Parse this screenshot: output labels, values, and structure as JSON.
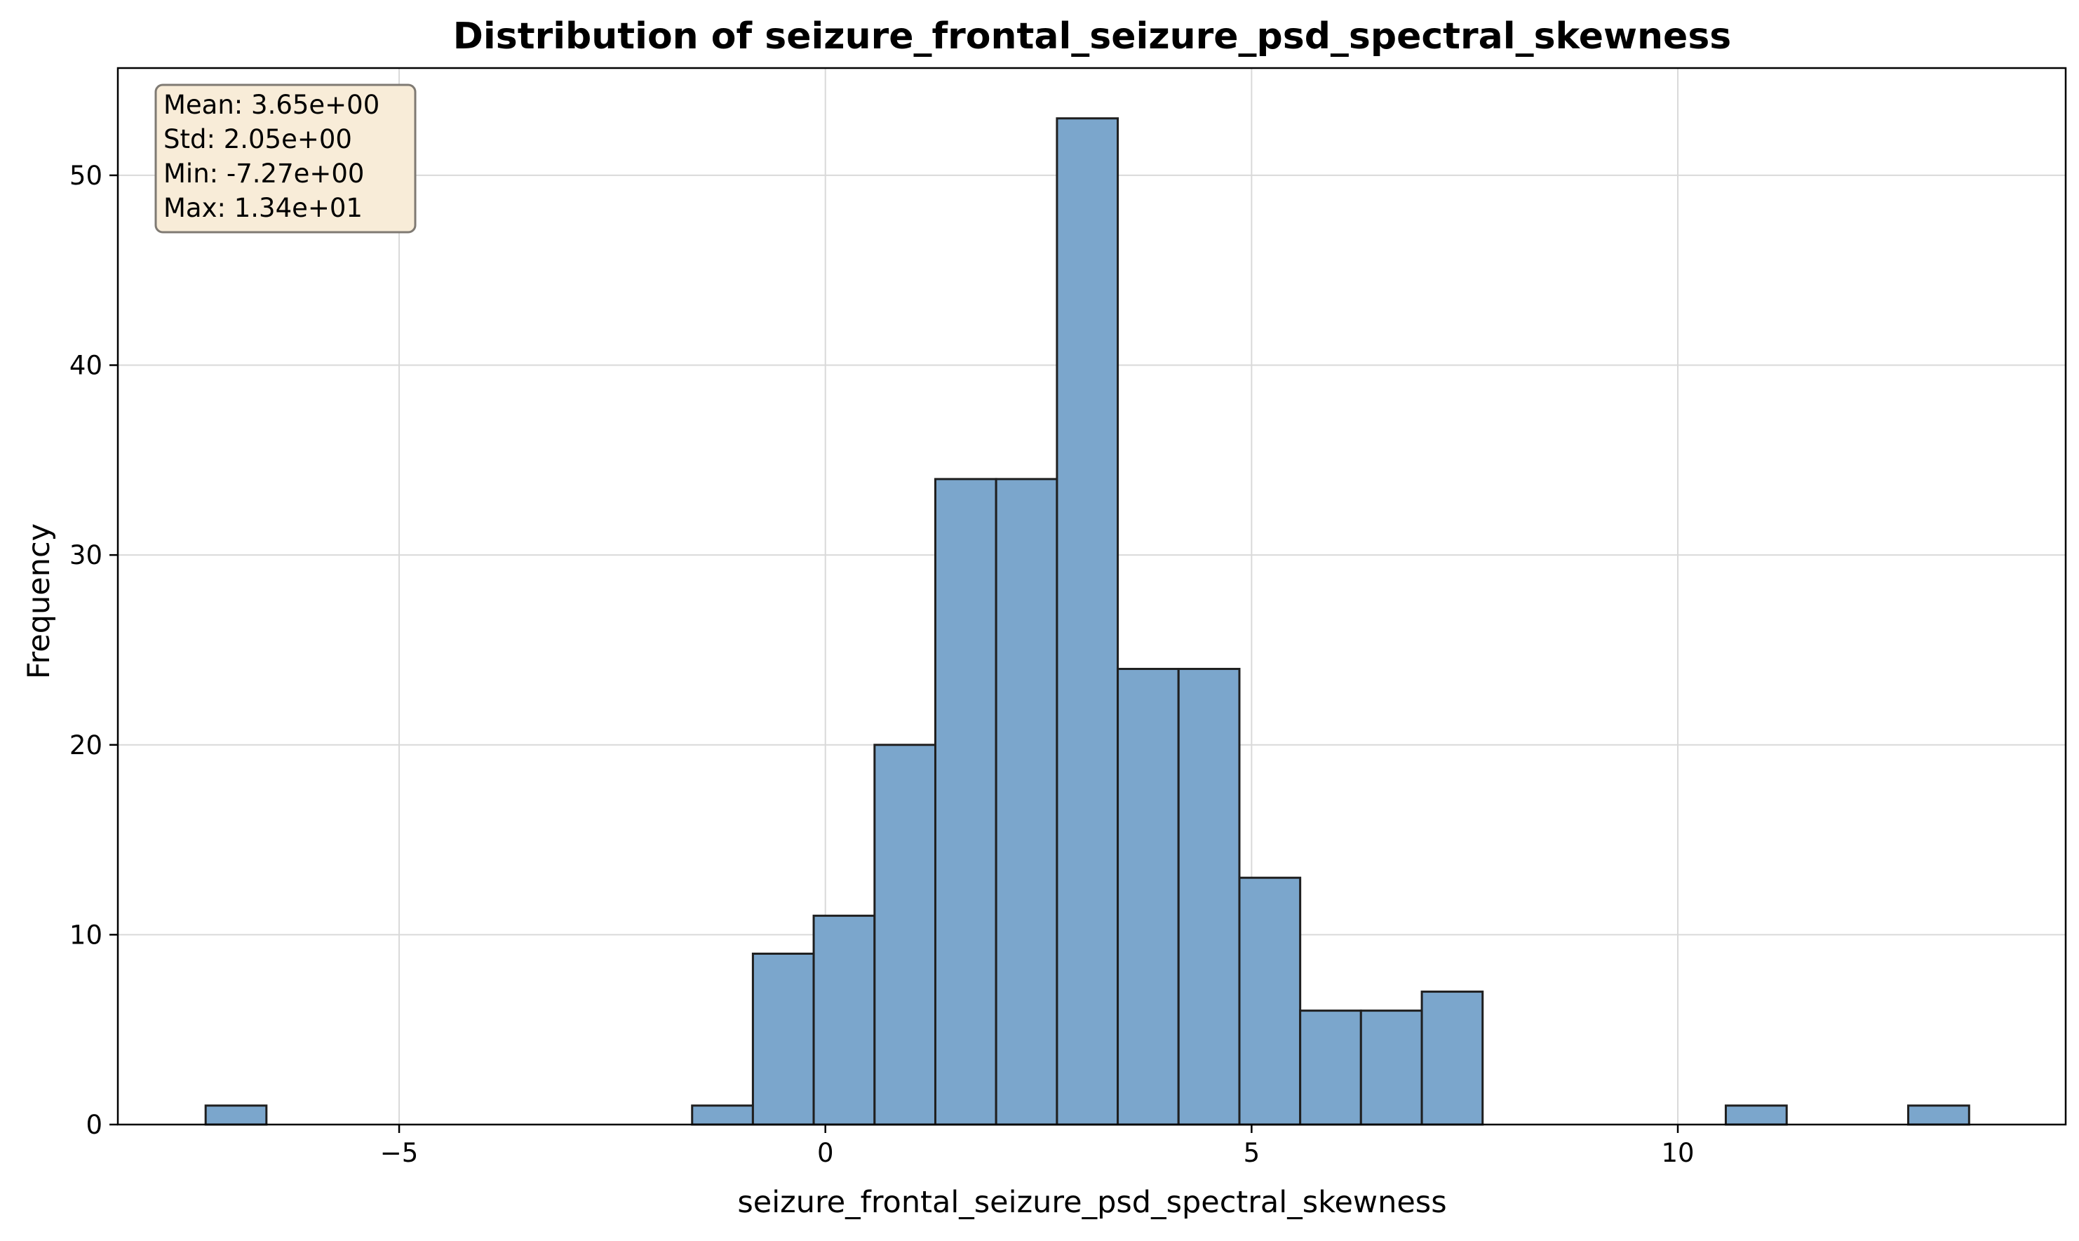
{
  "chart_data": {
    "type": "bar",
    "subtype": "histogram",
    "title": "Distribution of seizure_frontal_seizure_psd_spectral_skewness",
    "xlabel": "seizure_frontal_seizure_psd_spectral_skewness",
    "ylabel": "Frequency",
    "xlim": [
      -8.3,
      14.55
    ],
    "ylim": [
      0,
      55.65
    ],
    "xticks": [
      -5,
      0,
      5,
      10
    ],
    "xtick_labels": [
      "−5",
      "0",
      "5",
      "10"
    ],
    "yticks": [
      0,
      10,
      20,
      30,
      40,
      50
    ],
    "ytick_labels": [
      "0",
      "10",
      "20",
      "30",
      "40",
      "50"
    ],
    "grid": true,
    "bin_edges": [
      -7.27,
      -6.557,
      -5.843,
      -5.13,
      -4.417,
      -3.703,
      -2.99,
      -2.277,
      -1.563,
      -0.85,
      -0.137,
      0.577,
      1.29,
      2.003,
      2.717,
      3.43,
      4.143,
      4.857,
      5.57,
      6.283,
      6.997,
      7.71,
      8.423,
      9.137,
      9.85,
      10.563,
      11.277,
      11.99,
      12.703,
      13.417
    ],
    "counts": [
      1,
      0,
      0,
      0,
      0,
      0,
      0,
      0,
      1,
      9,
      11,
      20,
      34,
      34,
      53,
      24,
      24,
      13,
      6,
      6,
      7,
      0,
      0,
      0,
      0,
      1,
      0,
      0,
      1
    ],
    "bar_color": "#7ba6cc",
    "edge_color": "#1f1f1f",
    "stats_box": {
      "lines": [
        "Mean: 3.65e+00",
        "Std: 2.05e+00",
        "Min: -7.27e+00",
        "Max: 1.34e+01"
      ],
      "fill_color": "#f8ecd8",
      "edge_color": "#7f7a73",
      "placement": "top-left"
    }
  }
}
